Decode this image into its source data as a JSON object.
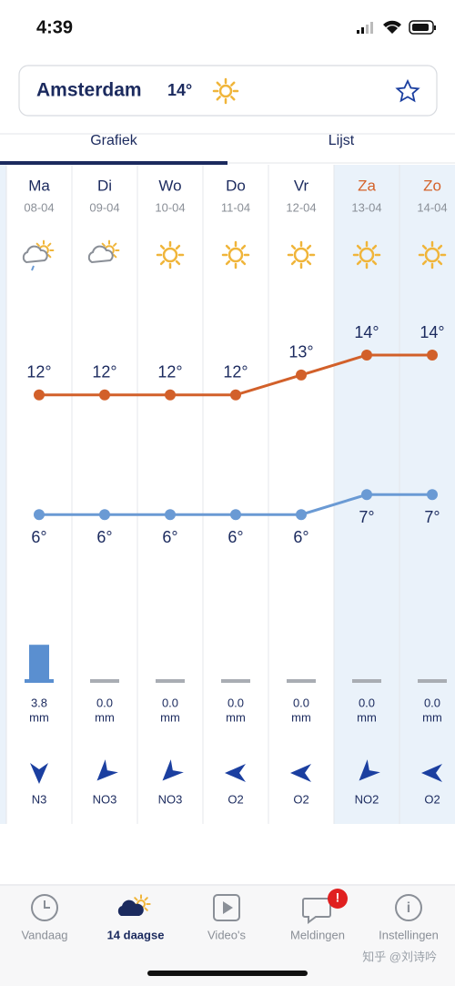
{
  "status_bar": {
    "time": "4:39"
  },
  "location": {
    "city": "Amsterdam",
    "temperature": "14°"
  },
  "tabs": [
    "Grafiek",
    "Lijst"
  ],
  "days": [
    {
      "day": "Ma",
      "date": "08-04",
      "high": {
        "value": 12,
        "label": "12°"
      },
      "low": {
        "value": 6,
        "label": "6°"
      },
      "rain": {
        "value": 3.8,
        "label": "3.8"
      },
      "rain_unit": "mm",
      "wind": "N3"
    },
    {
      "day": "Di",
      "date": "09-04",
      "high": {
        "value": 12,
        "label": "12°"
      },
      "low": {
        "value": 6,
        "label": "6°"
      },
      "rain": {
        "value": 0,
        "label": "0.0"
      },
      "rain_unit": "mm",
      "wind": "NO3"
    },
    {
      "day": "Wo",
      "date": "10-04",
      "high": {
        "value": 12,
        "label": "12°"
      },
      "low": {
        "value": 6,
        "label": "6°"
      },
      "rain": {
        "value": 0,
        "label": "0.0"
      },
      "rain_unit": "mm",
      "wind": "NO3"
    },
    {
      "day": "Do",
      "date": "11-04",
      "high": {
        "value": 12,
        "label": "12°"
      },
      "low": {
        "value": 6,
        "label": "6°"
      },
      "rain": {
        "value": 0,
        "label": "0.0"
      },
      "rain_unit": "mm",
      "wind": "O2"
    },
    {
      "day": "Vr",
      "date": "12-04",
      "high": {
        "value": 13,
        "label": "13°"
      },
      "low": {
        "value": 6,
        "label": "6°"
      },
      "rain": {
        "value": 0,
        "label": "0.0"
      },
      "rain_unit": "mm",
      "wind": "O2"
    },
    {
      "day": "Za",
      "date": "13-04",
      "high": {
        "value": 14,
        "label": "14°"
      },
      "low": {
        "value": 7,
        "label": "7°"
      },
      "rain": {
        "value": 0,
        "label": "0.0"
      },
      "rain_unit": "mm",
      "wind": "NO2"
    },
    {
      "day": "Zo",
      "date": "14-04",
      "high": {
        "value": 14,
        "label": "14°"
      },
      "low": {
        "value": 7,
        "label": "7°"
      },
      "rain": {
        "value": 0,
        "label": "0.0"
      },
      "rain_unit": "mm",
      "wind": "O2"
    }
  ],
  "nav": [
    "Vandaag",
    "14 daagse",
    "Video's",
    "Meldingen",
    "Instellingen"
  ],
  "notification_badge": "!",
  "watermark": "知乎 @刘诗吟"
}
